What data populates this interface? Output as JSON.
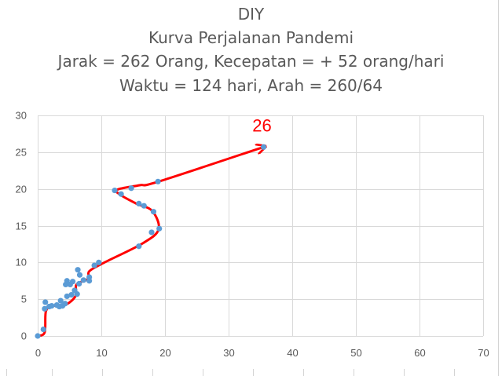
{
  "chart_data": {
    "type": "scatter",
    "title_lines": [
      "DIY",
      "Kurva Perjalanan Pandemi",
      "Jarak = 262 Orang, Kecepatan = + 52 orang/hari",
      "Waktu = 124 hari, Arah = 260/64"
    ],
    "xlim": [
      0,
      70
    ],
    "ylim": [
      0,
      30
    ],
    "x_ticks": [
      0,
      10,
      20,
      30,
      40,
      50,
      60,
      70
    ],
    "y_ticks": [
      0,
      5,
      10,
      15,
      20,
      25,
      30
    ],
    "grid": true,
    "colors": {
      "points": "#5b9bd5",
      "line": "#ff0000",
      "gridline": "#d9d9d9",
      "text": "#595959"
    },
    "end_label": "26",
    "points": [
      [
        0,
        0
      ],
      [
        0.9,
        0.9
      ],
      [
        1.1,
        3.7
      ],
      [
        1.2,
        4.6
      ],
      [
        1.8,
        4.0
      ],
      [
        2.2,
        4.1
      ],
      [
        3.0,
        4.2
      ],
      [
        3.4,
        4.0
      ],
      [
        3.6,
        4.8
      ],
      [
        3.9,
        4.1
      ],
      [
        4.3,
        4.4
      ],
      [
        4.6,
        5.4
      ],
      [
        5.3,
        5.6
      ],
      [
        6.2,
        5.7
      ],
      [
        5.8,
        6.2
      ],
      [
        5.1,
        7.0
      ],
      [
        4.4,
        7.0
      ],
      [
        4.6,
        7.5
      ],
      [
        5.5,
        7.4
      ],
      [
        6.5,
        7.1
      ],
      [
        7.2,
        7.6
      ],
      [
        8.1,
        8.0
      ],
      [
        8.1,
        7.5
      ],
      [
        6.6,
        8.3
      ],
      [
        6.3,
        9.0
      ],
      [
        8.9,
        9.6
      ],
      [
        9.6,
        10.0
      ],
      [
        15.9,
        12.2
      ],
      [
        17.9,
        14.1
      ],
      [
        19.1,
        14.6
      ],
      [
        18.2,
        16.9
      ],
      [
        16.7,
        17.7
      ],
      [
        15.9,
        18.0
      ],
      [
        13.1,
        19.3
      ],
      [
        12.1,
        19.8
      ],
      [
        14.7,
        20.1
      ],
      [
        18.9,
        21.0
      ],
      [
        35.5,
        25.7
      ]
    ],
    "curve": [
      [
        0,
        0
      ],
      [
        1.1,
        0.5
      ],
      [
        1.3,
        3.4
      ],
      [
        2.5,
        4.1
      ],
      [
        4.5,
        4.3
      ],
      [
        6.0,
        5.5
      ],
      [
        6.1,
        7.0
      ],
      [
        8.0,
        7.8
      ],
      [
        8.1,
        8.8
      ],
      [
        10.5,
        10.0
      ],
      [
        16.5,
        12.6
      ],
      [
        19.0,
        14.5
      ],
      [
        18.0,
        17.0
      ],
      [
        15.5,
        18.0
      ],
      [
        13.0,
        19.2
      ],
      [
        12.5,
        19.9
      ],
      [
        16.0,
        20.5
      ],
      [
        19.0,
        21.0
      ],
      [
        35.5,
        25.7
      ]
    ]
  }
}
